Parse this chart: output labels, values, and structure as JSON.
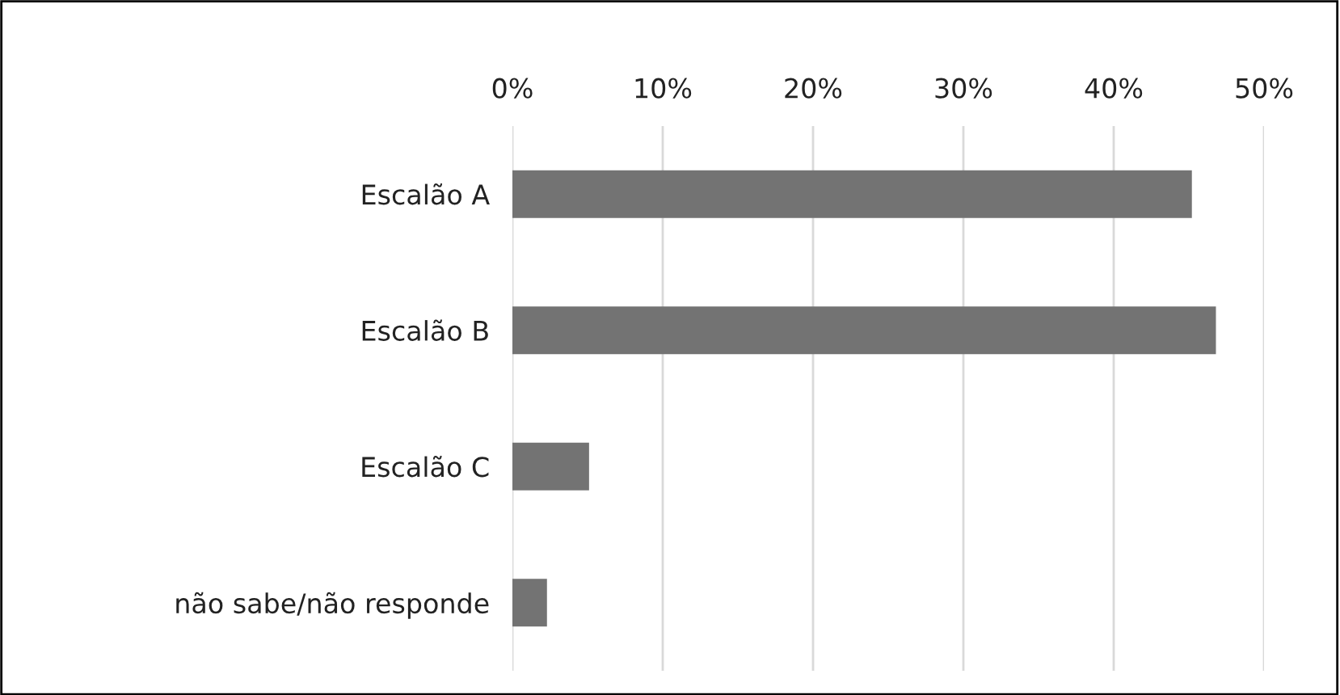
{
  "chart_data": {
    "type": "bar",
    "orientation": "horizontal",
    "categories": [
      "Escalão A",
      "Escalão B",
      "Escalão C",
      "não sabe/não responde"
    ],
    "values": [
      45.2,
      46.8,
      5.1,
      2.3
    ],
    "color": "#737373",
    "xlim": [
      0,
      50
    ],
    "xticks": [
      {
        "value": 0,
        "label": "0%"
      },
      {
        "value": 10,
        "label": "10%"
      },
      {
        "value": 20,
        "label": "20%"
      },
      {
        "value": 30,
        "label": "30%"
      },
      {
        "value": 40,
        "label": "40%"
      },
      {
        "value": 50,
        "label": "50%"
      }
    ],
    "grid": "x",
    "legend": false
  }
}
